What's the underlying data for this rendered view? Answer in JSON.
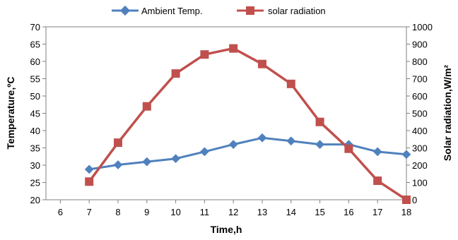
{
  "chart_data": {
    "type": "line",
    "xlabel": "Time,h",
    "ylabel": "Temperature,ºC",
    "y2label": "Solar radiation,W/m²",
    "x_ticks": [
      6,
      7,
      8,
      9,
      10,
      11,
      12,
      13,
      14,
      15,
      16,
      17,
      18
    ],
    "xlim": [
      5.5,
      18
    ],
    "ylim": [
      20,
      70
    ],
    "y_ticks": [
      20,
      25,
      30,
      35,
      40,
      45,
      50,
      55,
      60,
      65,
      70
    ],
    "y2lim": [
      0,
      1000
    ],
    "y2_ticks": [
      0,
      100,
      200,
      300,
      400,
      500,
      600,
      700,
      800,
      900,
      1000
    ],
    "grid": false,
    "legend_position": "top",
    "series": [
      {
        "name": "Ambient Temp.",
        "axis": "left",
        "color": "#4f81bd",
        "marker": "diamond",
        "x": [
          7,
          8,
          9,
          10,
          11,
          12,
          13,
          14,
          15,
          16,
          17,
          18
        ],
        "values": [
          28.8,
          30.1,
          31.0,
          31.9,
          33.9,
          36.0,
          37.9,
          37.0,
          36.0,
          36.0,
          33.9,
          33.1
        ]
      },
      {
        "name": "solar radiation",
        "axis": "right",
        "color": "#c0504d",
        "marker": "square",
        "x": [
          7,
          8,
          9,
          10,
          11,
          12,
          13,
          14,
          15,
          16,
          17,
          18
        ],
        "values": [
          105,
          330,
          540,
          730,
          840,
          875,
          785,
          670,
          450,
          295,
          110,
          0
        ]
      }
    ]
  }
}
